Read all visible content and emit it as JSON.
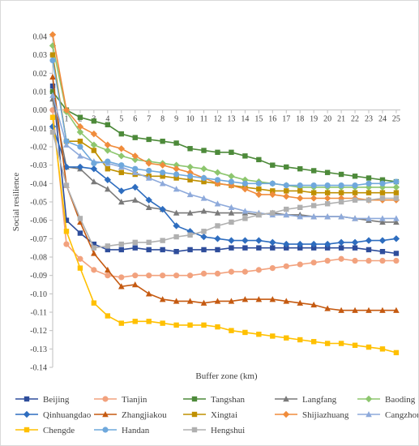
{
  "chart_data": {
    "type": "line",
    "title": "",
    "xlabel": "Buffer zone (km)",
    "ylabel": "Social resilience",
    "x": [
      0,
      1,
      2,
      3,
      4,
      5,
      6,
      7,
      8,
      9,
      10,
      11,
      12,
      13,
      14,
      15,
      16,
      17,
      18,
      19,
      20,
      21,
      22,
      23,
      24,
      25
    ],
    "x_tick_labels": [
      "1",
      "2",
      "3",
      "4",
      "5",
      "6",
      "7",
      "8",
      "9",
      "10",
      "11",
      "12",
      "13",
      "14",
      "15",
      "16",
      "17",
      "18",
      "19",
      "20",
      "21",
      "22",
      "23",
      "24",
      "25"
    ],
    "ylim": [
      -0.14,
      0.04
    ],
    "y_ticks": [
      0.04,
      0.03,
      0.02,
      0.01,
      0.0,
      -0.01,
      -0.02,
      -0.03,
      -0.04,
      -0.05,
      -0.06,
      -0.07,
      -0.08,
      -0.09,
      -0.1,
      -0.11,
      -0.12,
      -0.13,
      -0.14
    ],
    "y_tick_labels": [
      "0.04",
      "0.03",
      "0.02",
      "0.01",
      "0.00",
      "-0.01",
      "-0.02",
      "-0.03",
      "-0.04",
      "-0.05",
      "-0.06",
      "-0.07",
      "-0.08",
      "-0.09",
      "-0.10",
      "-0.11",
      "-0.12",
      "-0.13",
      "-0.14"
    ],
    "grid": false,
    "legend_position": "bottom",
    "series": [
      {
        "name": "Beijing",
        "color": "#2e4d9b",
        "marker": "square",
        "values": [
          0.013,
          -0.06,
          -0.067,
          -0.073,
          -0.076,
          -0.076,
          -0.075,
          -0.076,
          -0.076,
          -0.077,
          -0.076,
          -0.076,
          -0.076,
          -0.075,
          -0.075,
          -0.075,
          -0.075,
          -0.075,
          -0.075,
          -0.075,
          -0.075,
          -0.075,
          -0.075,
          -0.076,
          -0.077,
          -0.078
        ]
      },
      {
        "name": "Tianjin",
        "color": "#f2a27e",
        "marker": "circle",
        "values": [
          0.0,
          -0.073,
          -0.081,
          -0.087,
          -0.09,
          -0.091,
          -0.09,
          -0.09,
          -0.09,
          -0.09,
          -0.09,
          -0.089,
          -0.089,
          -0.088,
          -0.088,
          -0.087,
          -0.086,
          -0.085,
          -0.084,
          -0.083,
          -0.082,
          -0.081,
          -0.082,
          -0.082,
          -0.082,
          -0.082
        ]
      },
      {
        "name": "Tangshan",
        "color": "#4d8a3a",
        "marker": "square",
        "values": [
          0.01,
          0.0,
          -0.004,
          -0.006,
          -0.008,
          -0.013,
          -0.015,
          -0.016,
          -0.017,
          -0.018,
          -0.021,
          -0.022,
          -0.023,
          -0.023,
          -0.025,
          -0.027,
          -0.03,
          -0.031,
          -0.032,
          -0.033,
          -0.034,
          -0.035,
          -0.036,
          -0.037,
          -0.038,
          -0.039
        ]
      },
      {
        "name": "Langfang",
        "color": "#7a7a7a",
        "marker": "triangle",
        "values": [
          0.006,
          -0.031,
          -0.032,
          -0.039,
          -0.043,
          -0.05,
          -0.049,
          -0.053,
          -0.054,
          -0.056,
          -0.056,
          -0.055,
          -0.056,
          -0.056,
          -0.056,
          -0.057,
          -0.056,
          -0.057,
          -0.057,
          -0.058,
          -0.058,
          -0.058,
          -0.059,
          -0.06,
          -0.061,
          -0.061
        ]
      },
      {
        "name": "Baoding",
        "color": "#8dc66e",
        "marker": "diamond",
        "values": [
          0.035,
          -0.001,
          -0.012,
          -0.019,
          -0.022,
          -0.025,
          -0.027,
          -0.028,
          -0.029,
          -0.03,
          -0.031,
          -0.032,
          -0.034,
          -0.036,
          -0.038,
          -0.039,
          -0.04,
          -0.041,
          -0.042,
          -0.042,
          -0.042,
          -0.042,
          -0.042,
          -0.042,
          -0.042,
          -0.042
        ]
      },
      {
        "name": "Qinhuangdao",
        "color": "#2e6dbf",
        "marker": "diamond",
        "values": [
          -0.009,
          -0.031,
          -0.031,
          -0.032,
          -0.038,
          -0.044,
          -0.042,
          -0.049,
          -0.054,
          -0.063,
          -0.066,
          -0.069,
          -0.07,
          -0.071,
          -0.071,
          -0.071,
          -0.072,
          -0.073,
          -0.073,
          -0.073,
          -0.073,
          -0.072,
          -0.072,
          -0.071,
          -0.071,
          -0.07
        ]
      },
      {
        "name": "Zhangjiakou",
        "color": "#c55a11",
        "marker": "triangle",
        "values": [
          0.018,
          -0.041,
          -0.061,
          -0.078,
          -0.087,
          -0.096,
          -0.095,
          -0.1,
          -0.103,
          -0.104,
          -0.104,
          -0.105,
          -0.104,
          -0.104,
          -0.103,
          -0.103,
          -0.103,
          -0.104,
          -0.105,
          -0.106,
          -0.108,
          -0.109,
          -0.109,
          -0.109,
          -0.109,
          -0.109
        ]
      },
      {
        "name": "Xingtai",
        "color": "#bf9000",
        "marker": "square",
        "values": [
          0.03,
          -0.017,
          -0.017,
          -0.022,
          -0.032,
          -0.034,
          -0.035,
          -0.036,
          -0.036,
          -0.037,
          -0.038,
          -0.039,
          -0.04,
          -0.041,
          -0.042,
          -0.043,
          -0.044,
          -0.044,
          -0.044,
          -0.045,
          -0.045,
          -0.045,
          -0.045,
          -0.045,
          -0.045,
          -0.045
        ]
      },
      {
        "name": "Shijiazhuang",
        "color": "#f08c3c",
        "marker": "diamond",
        "values": [
          0.041,
          0.0,
          -0.009,
          -0.013,
          -0.019,
          -0.021,
          -0.025,
          -0.029,
          -0.03,
          -0.032,
          -0.034,
          -0.037,
          -0.04,
          -0.041,
          -0.043,
          -0.046,
          -0.046,
          -0.047,
          -0.048,
          -0.048,
          -0.048,
          -0.048,
          -0.048,
          -0.049,
          -0.049,
          -0.049
        ]
      },
      {
        "name": "Cangzhou",
        "color": "#8eaadb",
        "marker": "triangle",
        "values": [
          0.008,
          -0.019,
          -0.025,
          -0.028,
          -0.029,
          -0.031,
          -0.034,
          -0.037,
          -0.04,
          -0.043,
          -0.046,
          -0.048,
          -0.051,
          -0.053,
          -0.055,
          -0.056,
          -0.057,
          -0.057,
          -0.058,
          -0.058,
          -0.058,
          -0.058,
          -0.059,
          -0.059,
          -0.059,
          -0.059
        ]
      },
      {
        "name": "Chengde",
        "color": "#ffc000",
        "marker": "square",
        "values": [
          -0.004,
          -0.066,
          -0.086,
          -0.105,
          -0.112,
          -0.116,
          -0.115,
          -0.115,
          -0.116,
          -0.117,
          -0.117,
          -0.117,
          -0.118,
          -0.12,
          -0.121,
          -0.122,
          -0.123,
          -0.124,
          -0.125,
          -0.126,
          -0.127,
          -0.127,
          -0.128,
          -0.129,
          -0.13,
          -0.132
        ]
      },
      {
        "name": "Handan",
        "color": "#6fa8dc",
        "marker": "circle",
        "values": [
          0.027,
          -0.017,
          -0.02,
          -0.029,
          -0.028,
          -0.03,
          -0.032,
          -0.033,
          -0.034,
          -0.035,
          -0.036,
          -0.037,
          -0.038,
          -0.039,
          -0.04,
          -0.04,
          -0.04,
          -0.041,
          -0.041,
          -0.041,
          -0.041,
          -0.041,
          -0.041,
          -0.04,
          -0.04,
          -0.039
        ]
      },
      {
        "name": "Hengshui",
        "color": "#b0b0b0",
        "marker": "square",
        "values": [
          -0.012,
          -0.041,
          -0.059,
          -0.075,
          -0.074,
          -0.073,
          -0.072,
          -0.072,
          -0.071,
          -0.069,
          -0.068,
          -0.066,
          -0.063,
          -0.061,
          -0.059,
          -0.057,
          -0.056,
          -0.054,
          -0.053,
          -0.052,
          -0.051,
          -0.05,
          -0.049,
          -0.049,
          -0.048,
          -0.048
        ]
      }
    ]
  }
}
